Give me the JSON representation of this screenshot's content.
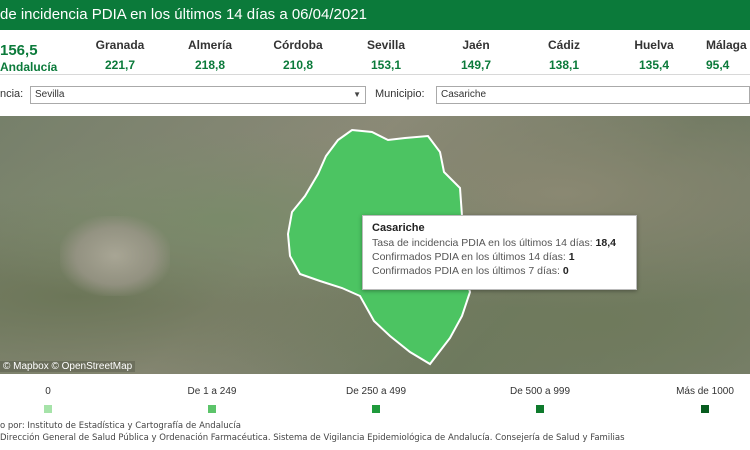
{
  "header": {
    "title": "de incidencia PDIA en los últimos 14 días a 06/04/2021"
  },
  "total": {
    "value": "156,5",
    "label": "Andalucía"
  },
  "provinces": [
    {
      "name": "Granada",
      "value": "221,7"
    },
    {
      "name": "Almería",
      "value": "218,8"
    },
    {
      "name": "Córdoba",
      "value": "210,8"
    },
    {
      "name": "Sevilla",
      "value": "153,1"
    },
    {
      "name": "Jaén",
      "value": "149,7"
    },
    {
      "name": "Cádiz",
      "value": "138,1"
    },
    {
      "name": "Huelva",
      "value": "135,4"
    },
    {
      "name": "Málaga",
      "value": "95,4"
    }
  ],
  "filters": {
    "province_label": "ncia:",
    "province_value": "Sevilla",
    "municipio_label": "Municipio:",
    "municipio_value": "Casariche"
  },
  "map": {
    "attribution": "© Mapbox © OpenStreetMap",
    "highlight_color": "#4cc462"
  },
  "tooltip": {
    "title": "Casariche",
    "rows": [
      {
        "label": "Tasa de incidencia PDIA en los últimos 14 días:",
        "value": "18,4"
      },
      {
        "label": "Confirmados PDIA en los últimos 14 días:",
        "value": "1"
      },
      {
        "label": "Confirmados PDIA en los últimos 7 días:",
        "value": "0"
      }
    ]
  },
  "legend": [
    {
      "label": "0",
      "color": "#a6e3a9"
    },
    {
      "label": "De 1 a 249",
      "color": "#5cc46a"
    },
    {
      "label": "De 250 a 499",
      "color": "#1f9a3c"
    },
    {
      "label": "De 500 a 999",
      "color": "#0e7a2c"
    },
    {
      "label": "Más de 1000",
      "color": "#075c1f"
    }
  ],
  "footer": {
    "line1": "o por: Instituto de Estadística y Cartografía de Andalucía",
    "line2": "Dirección General de Salud Pública y Ordenación Farmacéutica. Sistema de Vigilancia Epidemiológica de Andalucía. Consejería de Salud y Familias"
  }
}
